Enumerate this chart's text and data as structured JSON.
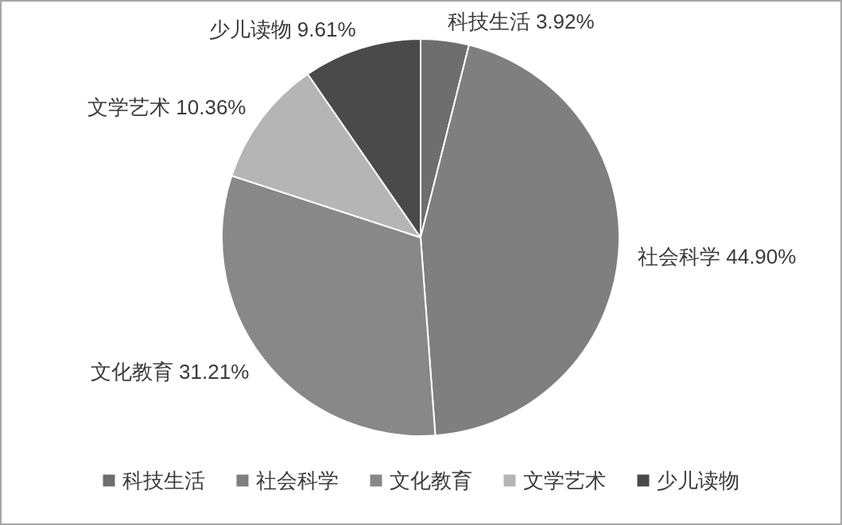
{
  "chart_data": {
    "type": "pie",
    "categories": [
      "科技生活",
      "社会科学",
      "文化教育",
      "文学艺术",
      "少儿读物"
    ],
    "values": [
      3.92,
      44.9,
      31.21,
      10.36,
      9.61
    ],
    "value_labels": [
      "3.92%",
      "44.90%",
      "31.21%",
      "10.36%",
      "9.61%"
    ],
    "colors": [
      "#6e6e6e",
      "#7f7f7f",
      "#888888",
      "#b5b5b5",
      "#4a4a4a"
    ],
    "legend": "bottom"
  }
}
